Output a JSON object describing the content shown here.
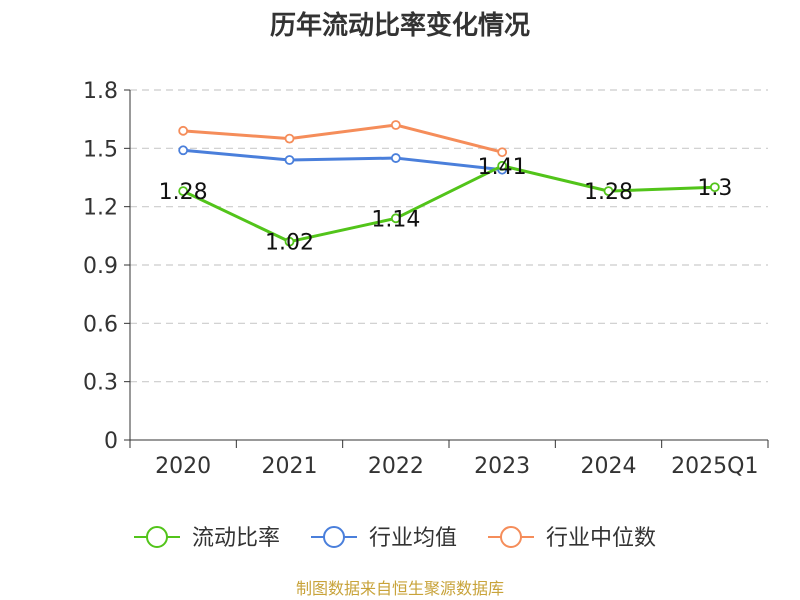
{
  "chart_data": {
    "type": "line",
    "title": "历年流动比率变化情况",
    "categories": [
      "2020",
      "2021",
      "2022",
      "2023",
      "2024",
      "2025Q1"
    ],
    "ylim": [
      0,
      1.8
    ],
    "yticks": [
      "0",
      "0.3",
      "0.6",
      "0.9",
      "1.2",
      "1.5",
      "1.8"
    ],
    "grid": true,
    "legend_position": "bottom",
    "series": [
      {
        "name": "流动比率",
        "color": "#52c41a",
        "values": [
          1.28,
          1.02,
          1.14,
          1.41,
          1.28,
          1.3
        ],
        "labels": [
          "1.28",
          "1.02",
          "1.14",
          "1.41",
          "1.28",
          "1.3"
        ]
      },
      {
        "name": "行业均值",
        "color": "#4a7fdb",
        "values": [
          1.49,
          1.44,
          1.45,
          1.39,
          null,
          null
        ]
      },
      {
        "name": "行业中位数",
        "color": "#f58d5a",
        "values": [
          1.59,
          1.55,
          1.62,
          1.48,
          null,
          null
        ]
      }
    ],
    "source": "制图数据来自恒生聚源数据库",
    "source_color": "#c8a33a"
  }
}
